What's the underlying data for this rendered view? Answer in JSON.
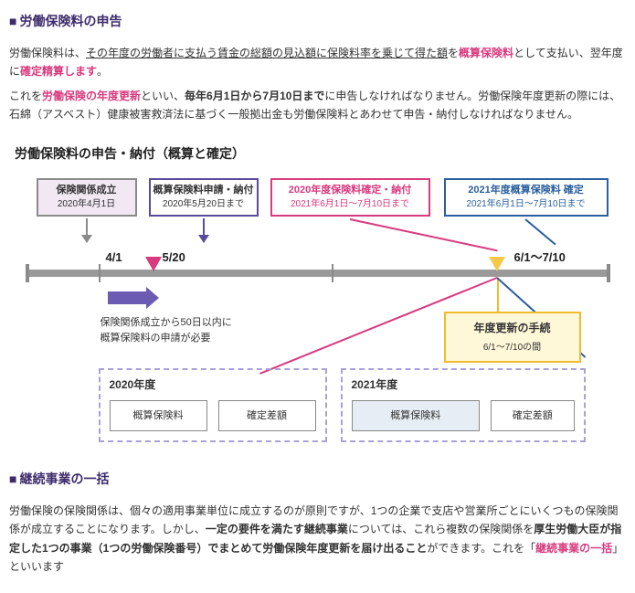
{
  "section1": {
    "title": "労働保険料の申告",
    "p1_pre": "労働保険料は、",
    "p1_ul": "その年度の労働者に支払う賃金の総額の見込額に保険料率を乗じて得た額",
    "p1_mid": "を",
    "p1_term1": "概算保険料",
    "p1_post1": "として支払い、翌年度に",
    "p1_term2": "確定精算します",
    "p1_end": "。",
    "p2_pre": "これを",
    "p2_term": "労働保険の年度更新",
    "p2_mid": "といい、",
    "p2_bold": "毎年6月1日から7月10日まで",
    "p2_post": "に申告しなければなりません。労働保険年度更新の際には、石綿（アスベスト）健康被害救済法に基づく一般拠出金も労働保険料とあわせて申告・納付しなければなりません。"
  },
  "chart": {
    "title": "労働保険料の申告・納付（概算と確定）",
    "boxA_l1": "保険関係成立",
    "boxA_l2": "2020年4月1日",
    "boxB_l1": "概算保険料申請・納付",
    "boxB_l2": "2020年5月20日まで",
    "boxC_l1": "2020年度保険料確定・納付",
    "boxC_l2": "2021年6月1日〜7月10日まで",
    "boxD_l1": "2021年度概算保険料 確定",
    "boxD_l2": "2021年6月1日〜7月10日まで",
    "tl1": "4/1",
    "tl2": "5/20",
    "tl3": "6/1〜7/10",
    "note50_l1": "保険関係成立から50日以内に",
    "note50_l2": "概算保険料の申請が必要",
    "callout_t": "年度更新の手続",
    "callout_s": "6/1〜7/10の間",
    "yg1_label": "2020年度",
    "yg2_label": "2021年度",
    "ibox_gaisan": "概算保険料",
    "ibox_kakutei": "確定差額"
  },
  "section2": {
    "title": "継続事業の一括",
    "p_pre": "労働保険の保険関係は、個々の適用事業単位に成立するのが原則ですが、1つの企業で支店や営業所ごとにいくつもの保険関係が成立することになります。しかし、",
    "p_bold1": "一定の要件を満たす継続事業",
    "p_mid1": "については、これら複数の保険関係を",
    "p_bold2": "厚生労働大臣が指定した1つの事業（1つの労働保険番号）でまとめて労働保険年度更新を届け出ること",
    "p_mid2": "ができます。これを「",
    "p_term": "継続事業の一括",
    "p_post": "」といいます"
  }
}
